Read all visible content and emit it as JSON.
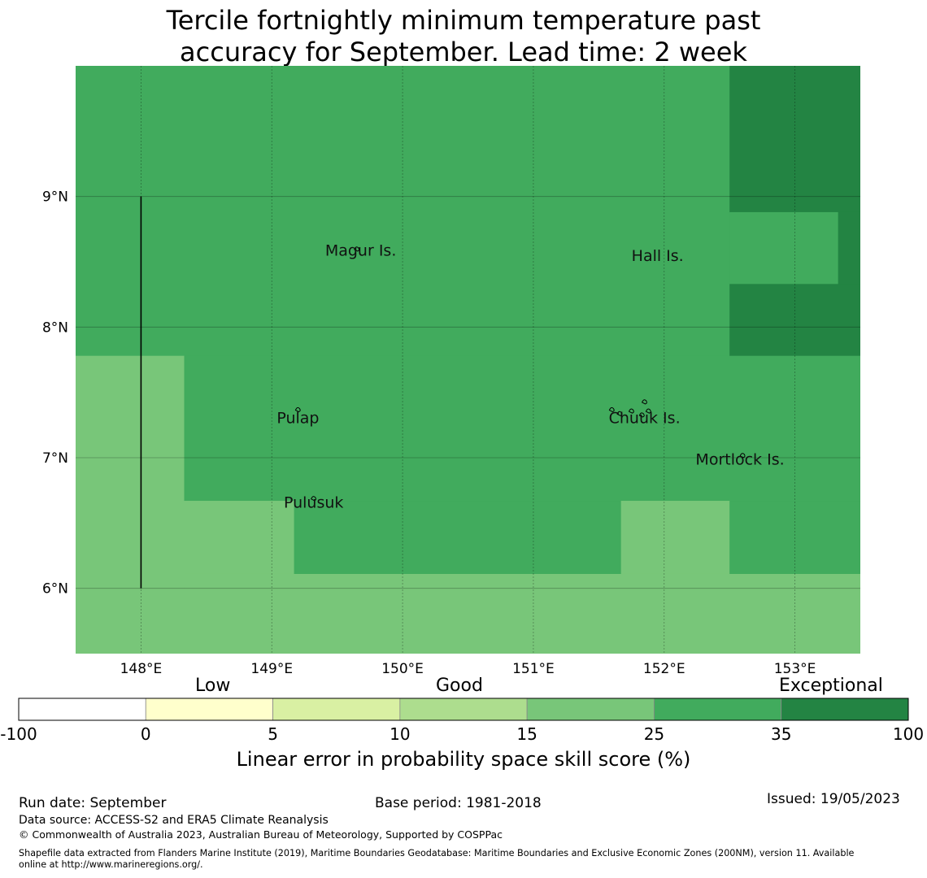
{
  "title": {
    "line1": "Tercile fortnightly minimum temperature past",
    "line2": "accuracy for September. Lead time: 2 week"
  },
  "map": {
    "lon_range": [
      147.5,
      153.5
    ],
    "lat_range": [
      5.5,
      10.0
    ],
    "lon_ticks": [
      148,
      149,
      150,
      151,
      152,
      153
    ],
    "lat_ticks": [
      6,
      7,
      8,
      9
    ],
    "lon_tick_labels": [
      "148°E",
      "149°E",
      "150°E",
      "151°E",
      "152°E",
      "153°E"
    ],
    "lat_tick_labels": [
      "6°N",
      "7°N",
      "8°N",
      "9°N"
    ],
    "boundary_line": {
      "lon": 148.0,
      "lat_from": 6.0,
      "lat_to": 9.0
    },
    "cells": [
      {
        "lon": [
          147.5,
          152.5
        ],
        "lat": [
          7.78,
          10.0
        ],
        "category": "25-35"
      },
      {
        "lon": [
          152.5,
          153.5
        ],
        "lat": [
          8.88,
          10.0
        ],
        "category": "35-100"
      },
      {
        "lon": [
          152.5,
          153.33
        ],
        "lat": [
          8.33,
          8.88
        ],
        "category": "25-35"
      },
      {
        "lon": [
          153.33,
          153.5
        ],
        "lat": [
          8.33,
          8.88
        ],
        "category": "35-100"
      },
      {
        "lon": [
          152.5,
          153.5
        ],
        "lat": [
          7.78,
          8.33
        ],
        "category": "35-100"
      },
      {
        "lon": [
          147.5,
          148.33
        ],
        "lat": [
          5.5,
          7.78
        ],
        "category": "15-25"
      },
      {
        "lon": [
          148.33,
          153.5
        ],
        "lat": [
          6.67,
          7.78
        ],
        "category": "25-35"
      },
      {
        "lon": [
          148.33,
          149.17
        ],
        "lat": [
          6.11,
          6.67
        ],
        "category": "15-25"
      },
      {
        "lon": [
          149.17,
          151.67
        ],
        "lat": [
          6.11,
          6.67
        ],
        "category": "25-35"
      },
      {
        "lon": [
          151.67,
          152.5
        ],
        "lat": [
          6.11,
          6.67
        ],
        "category": "15-25"
      },
      {
        "lon": [
          152.5,
          153.5
        ],
        "lat": [
          6.11,
          6.67
        ],
        "category": "25-35"
      },
      {
        "lon": [
          148.33,
          153.5
        ],
        "lat": [
          5.5,
          6.11
        ],
        "category": "15-25"
      }
    ],
    "places": [
      {
        "name": "Magur Is.",
        "lon": 149.68,
        "lat": 8.58
      },
      {
        "name": "Hall Is.",
        "lon": 151.95,
        "lat": 8.54
      },
      {
        "name": "Pulap",
        "lon": 149.2,
        "lat": 7.3
      },
      {
        "name": "Chuuk Is.",
        "lon": 151.85,
        "lat": 7.3
      },
      {
        "name": "Mortlock Is.",
        "lon": 152.58,
        "lat": 6.98
      },
      {
        "name": "Pulusuk",
        "lon": 149.32,
        "lat": 6.65
      }
    ],
    "islands": [
      {
        "lon": 149.65,
        "lat": 8.6
      },
      {
        "lon": 149.2,
        "lat": 7.37
      },
      {
        "lon": 149.32,
        "lat": 6.69
      },
      {
        "lon": 151.6,
        "lat": 7.37
      },
      {
        "lon": 151.66,
        "lat": 7.34
      },
      {
        "lon": 151.75,
        "lat": 7.36
      },
      {
        "lon": 151.83,
        "lat": 7.33
      },
      {
        "lon": 151.85,
        "lat": 7.43
      },
      {
        "lon": 151.88,
        "lat": 7.36
      },
      {
        "lon": 152.6,
        "lat": 7.02
      }
    ]
  },
  "colorbar": {
    "categories": [
      {
        "key": "-100-0",
        "color": "#ffffff"
      },
      {
        "key": "0-5",
        "color": "#ffffcc"
      },
      {
        "key": "5-10",
        "color": "#d9f0a3"
      },
      {
        "key": "10-15",
        "color": "#addd8e"
      },
      {
        "key": "15-25",
        "color": "#78c679"
      },
      {
        "key": "25-35",
        "color": "#41ab5d"
      },
      {
        "key": "35-100",
        "color": "#238443"
      }
    ],
    "tick_labels": [
      "-100",
      "0",
      "5",
      "10",
      "15",
      "25",
      "35",
      "100"
    ],
    "group_labels": {
      "low": "Low",
      "good": "Good",
      "exceptional": "Exceptional"
    },
    "title": "Linear error in probability space skill score (%)"
  },
  "footer": {
    "run_date": "Run date: September",
    "base_period": "Base period: 1981-2018",
    "issued": "Issued: 19/05/2023",
    "data_source": "Data source: ACCESS-S2 and ERA5 Climate Reanalysis",
    "copyright": "© Commonwealth of Australia 2023, Australian Bureau of Meteorology, Supported by COSPPac",
    "shapefile_line1": "Shapefile data extracted from Flanders Marine Institute (2019), Maritime Boundaries Geodatabase: Maritime Boundaries and Exclusive Economic Zones (200NM), version 11. Available",
    "shapefile_line2": "online at http://www.marineregions.org/."
  }
}
